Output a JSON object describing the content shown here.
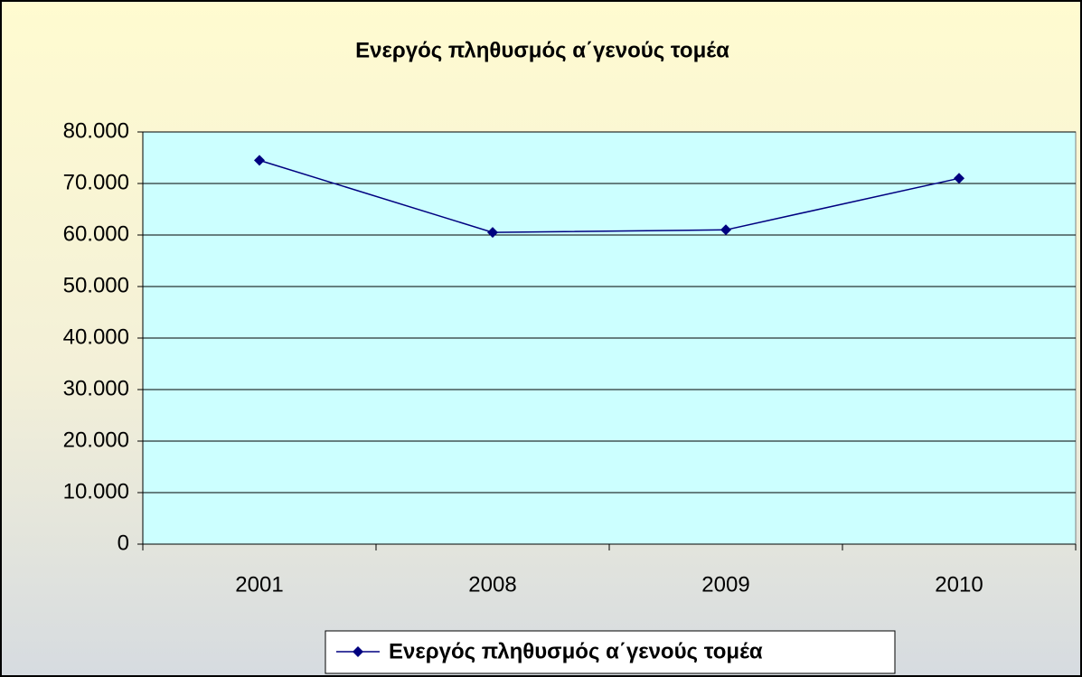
{
  "chart_data": {
    "type": "line",
    "title": "Ενεργός πληθυσμός α΄γενούς τομέα",
    "categories": [
      "2001",
      "2008",
      "2009",
      "2010"
    ],
    "series": [
      {
        "name": "Ενεργός πληθυσμός α΄γενούς τομέα",
        "color": "#000080",
        "values": [
          74500,
          60500,
          61000,
          71000
        ]
      }
    ],
    "ylim": [
      0,
      80000
    ],
    "yticks": [
      0,
      {
        "value": 10000,
        "label": "10.000"
      },
      {
        "value": 20000,
        "label": "20.000"
      },
      {
        "value": 30000,
        "label": "30.000"
      },
      {
        "value": 40000,
        "label": "40.000"
      },
      {
        "value": 50000,
        "label": "50.000"
      },
      {
        "value": 60000,
        "label": "60.000"
      },
      {
        "value": 70000,
        "label": "70.000"
      },
      {
        "value": 80000,
        "label": "80.000"
      }
    ],
    "grid": true,
    "legend": "bottom"
  }
}
